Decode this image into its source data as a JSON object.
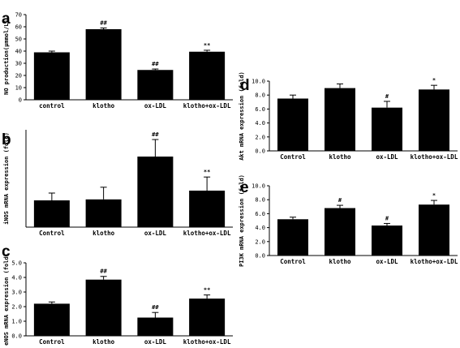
{
  "chart_data": [
    {
      "panel": "a",
      "type": "bar",
      "ylabel": "NO production(μmmol/L)",
      "categories": [
        "control",
        "klotho",
        "ox-LDL",
        "klotho+ox-LDL"
      ],
      "values": [
        39,
        58,
        24.5,
        39.5
      ],
      "errors": [
        1,
        1,
        0.8,
        1.2
      ],
      "annotations": [
        "",
        "##",
        "##",
        "**"
      ],
      "ylim": [
        0,
        70
      ],
      "yticks": [
        "0",
        "10",
        "20",
        "30",
        "40",
        "50",
        "60",
        "70"
      ]
    },
    {
      "panel": "b",
      "type": "bar",
      "ylabel": "iNOS mRNA expression (fold)",
      "categories": [
        "Control",
        "klotho",
        "ox-LDL",
        "klotho+ox-LDL"
      ],
      "values": [
        0.55,
        0.57,
        1.45,
        0.75
      ],
      "errors": [
        0.15,
        0.25,
        0.35,
        0.28
      ],
      "annotations": [
        "",
        "",
        "##",
        "**"
      ],
      "ylim": [
        0,
        2
      ],
      "yticks": []
    },
    {
      "panel": "c",
      "type": "bar",
      "ylabel": "eNOS mRNA expression (fold)",
      "categories": [
        "Control",
        "klotho",
        "ox-LDL",
        "klotho+ox-LDL"
      ],
      "values": [
        2.2,
        3.85,
        1.25,
        2.55
      ],
      "errors": [
        0.12,
        0.22,
        0.35,
        0.25
      ],
      "annotations": [
        "",
        "##",
        "##",
        "**"
      ],
      "ylim": [
        0,
        5
      ],
      "yticks": [
        "0.0",
        "1.0",
        "2.0",
        "3.0",
        "4.0",
        "5.0"
      ]
    },
    {
      "panel": "d",
      "type": "bar",
      "ylabel": "Akt mRNA expression (fold)",
      "categories": [
        "Control",
        "klotho",
        "ox-LDL",
        "klotho+ox-LDL"
      ],
      "values": [
        7.5,
        9.0,
        6.2,
        8.8
      ],
      "errors": [
        0.5,
        0.6,
        0.9,
        0.6
      ],
      "annotations": [
        "",
        "",
        "#",
        "*"
      ],
      "ylim": [
        0,
        10
      ],
      "yticks": [
        "0.0",
        "2.0",
        "4.0",
        "6.0",
        "8.0",
        "10.0"
      ]
    },
    {
      "panel": "e",
      "type": "bar",
      "ylabel": "PI3K mRNA expression (fold)",
      "categories": [
        "Control",
        "klotho",
        "ox-LDL",
        "klotho+ox-LDL"
      ],
      "values": [
        5.2,
        6.8,
        4.3,
        7.3
      ],
      "errors": [
        0.3,
        0.4,
        0.3,
        0.6
      ],
      "annotations": [
        "",
        "#",
        "#",
        "*"
      ],
      "ylim": [
        0,
        10
      ],
      "yticks": [
        "0.0",
        "2.0",
        "4.0",
        "6.0",
        "8.0",
        "10.0"
      ]
    }
  ]
}
